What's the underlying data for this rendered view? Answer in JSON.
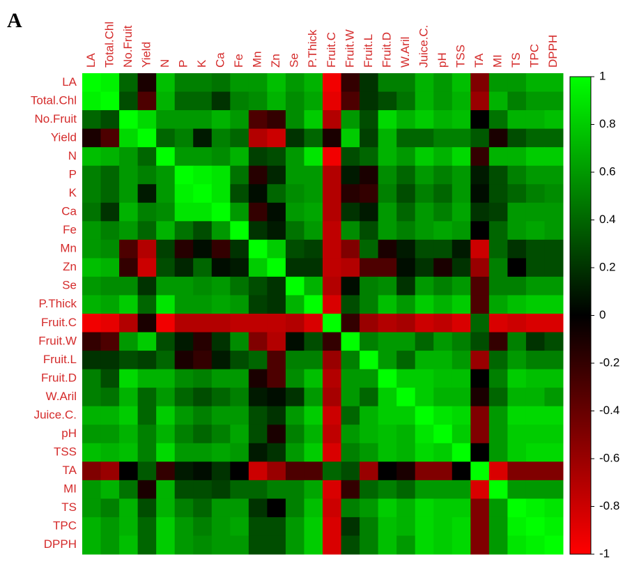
{
  "chart_data": {
    "type": "heatmap",
    "panel_label": "A",
    "categories": [
      "LA",
      "Total.Chl",
      "No.Fruit",
      "Yield",
      "N",
      "P",
      "K",
      "Ca",
      "Fe",
      "Mn",
      "Zn",
      "Se",
      "P.Thick",
      "Fruit.C",
      "Fruit.W",
      "Fruit.L",
      "Fruit.D",
      "W.Aril",
      "Juice.C.",
      "pH",
      "TSS",
      "TA",
      "MI",
      "TS",
      "TPC",
      "DPPH"
    ],
    "values": [
      [
        1,
        0.95,
        0.4,
        -0.1,
        0.75,
        0.5,
        0.5,
        0.45,
        0.6,
        0.6,
        0.75,
        0.6,
        0.7,
        -0.95,
        -0.2,
        0.2,
        0.5,
        0.5,
        0.7,
        0.6,
        0.75,
        -0.5,
        0.6,
        0.6,
        0.7,
        0.7
      ],
      [
        0.95,
        1,
        0.3,
        -0.3,
        0.7,
        0.4,
        0.4,
        0.2,
        0.5,
        0.55,
        0.7,
        0.55,
        0.65,
        -0.9,
        -0.3,
        0.2,
        0.3,
        0.45,
        0.7,
        0.6,
        0.7,
        -0.6,
        0.7,
        0.5,
        0.6,
        0.6
      ],
      [
        0.4,
        0.3,
        1,
        0.85,
        0.6,
        0.6,
        0.6,
        0.7,
        0.6,
        -0.3,
        -0.2,
        0.55,
        0.8,
        -0.7,
        0.6,
        0.3,
        0.85,
        0.7,
        0.8,
        0.7,
        0.75,
        0,
        0.45,
        0.7,
        0.7,
        0.75
      ],
      [
        -0.1,
        -0.3,
        0.85,
        1,
        0.4,
        0.5,
        0.1,
        0.5,
        0.4,
        -0.7,
        -0.8,
        0.2,
        0.4,
        -0.1,
        0.8,
        0.25,
        0.7,
        0.4,
        0.4,
        0.5,
        0.5,
        0.35,
        -0.1,
        0.3,
        0.4,
        0.4
      ],
      [
        0.75,
        0.7,
        0.6,
        0.4,
        1,
        0.6,
        0.6,
        0.55,
        0.7,
        0.25,
        0.3,
        0.6,
        0.9,
        -0.95,
        0.3,
        0.4,
        0.7,
        0.6,
        0.8,
        0.7,
        0.85,
        -0.2,
        0.7,
        0.7,
        0.8,
        0.8
      ],
      [
        0.5,
        0.4,
        0.6,
        0.5,
        0.6,
        1,
        0.95,
        0.9,
        0.45,
        -0.15,
        0.15,
        0.6,
        0.6,
        -0.7,
        0.1,
        -0.1,
        0.55,
        0.4,
        0.6,
        0.5,
        0.6,
        0.1,
        0.3,
        0.5,
        0.6,
        0.6
      ],
      [
        0.5,
        0.4,
        0.6,
        0.1,
        0.6,
        0.95,
        1,
        0.9,
        0.3,
        0.05,
        0.4,
        0.55,
        0.6,
        -0.7,
        -0.15,
        -0.2,
        0.5,
        0.3,
        0.5,
        0.4,
        0.6,
        0.05,
        0.3,
        0.4,
        0.5,
        0.55
      ],
      [
        0.45,
        0.2,
        0.7,
        0.5,
        0.55,
        0.9,
        0.9,
        1,
        0.6,
        -0.2,
        0.05,
        0.6,
        0.65,
        -0.7,
        0.2,
        0.1,
        0.6,
        0.4,
        0.6,
        0.5,
        0.65,
        0.2,
        0.25,
        0.6,
        0.6,
        0.6
      ],
      [
        0.6,
        0.5,
        0.6,
        0.4,
        0.7,
        0.45,
        0.3,
        0.6,
        1,
        0.2,
        0.1,
        0.45,
        0.6,
        -0.75,
        0.55,
        0.3,
        0.6,
        0.5,
        0.6,
        0.65,
        0.6,
        0,
        0.4,
        0.6,
        0.65,
        0.6
      ],
      [
        0.6,
        0.55,
        -0.3,
        -0.7,
        0.25,
        -0.15,
        0.05,
        -0.2,
        0.2,
        1,
        0.8,
        0.3,
        0.25,
        -0.75,
        -0.5,
        0.4,
        -0.1,
        0.1,
        0.3,
        0.3,
        0.1,
        -0.8,
        0.4,
        0.2,
        0.3,
        0.3
      ],
      [
        0.75,
        0.7,
        -0.2,
        -0.8,
        0.3,
        0.15,
        0.4,
        0.05,
        0.1,
        0.8,
        1,
        0.2,
        0.2,
        -0.75,
        -0.7,
        -0.3,
        -0.3,
        0.05,
        0.2,
        -0.1,
        0.2,
        -0.6,
        0.5,
        0,
        0.3,
        0.3
      ],
      [
        0.6,
        0.55,
        0.55,
        0.2,
        0.6,
        0.6,
        0.55,
        0.6,
        0.45,
        0.3,
        0.2,
        1,
        0.7,
        -0.7,
        0.05,
        0.5,
        0.55,
        0.2,
        0.6,
        0.5,
        0.6,
        -0.3,
        0.5,
        0.5,
        0.6,
        0.6
      ],
      [
        0.7,
        0.65,
        0.8,
        0.4,
        0.9,
        0.6,
        0.6,
        0.65,
        0.6,
        0.25,
        0.2,
        0.7,
        1,
        -0.85,
        0.3,
        0.5,
        0.75,
        0.6,
        0.8,
        0.7,
        0.8,
        -0.3,
        0.65,
        0.75,
        0.8,
        0.8
      ],
      [
        -0.95,
        -0.9,
        -0.7,
        -0.1,
        -0.95,
        -0.7,
        -0.7,
        -0.7,
        -0.75,
        -0.75,
        -0.75,
        -0.7,
        -0.85,
        1,
        -0.2,
        -0.6,
        -0.7,
        -0.65,
        -0.8,
        -0.75,
        -0.85,
        0.4,
        -0.85,
        -0.8,
        -0.85,
        -0.85
      ],
      [
        -0.2,
        -0.3,
        0.6,
        0.8,
        0.3,
        0.1,
        -0.15,
        0.2,
        0.55,
        -0.5,
        -0.7,
        0.05,
        0.3,
        -0.2,
        1,
        0.5,
        0.6,
        0.6,
        0.4,
        0.6,
        0.5,
        0.3,
        -0.2,
        0.5,
        0.2,
        0.3
      ],
      [
        0.2,
        0.2,
        0.3,
        0.25,
        0.4,
        -0.1,
        -0.2,
        0.1,
        0.3,
        0.4,
        -0.3,
        0.5,
        0.5,
        -0.6,
        0.5,
        1,
        0.6,
        0.4,
        0.7,
        0.7,
        0.6,
        -0.6,
        0.4,
        0.6,
        0.5,
        0.5
      ],
      [
        0.5,
        0.3,
        0.85,
        0.7,
        0.7,
        0.55,
        0.5,
        0.6,
        0.6,
        -0.1,
        -0.3,
        0.55,
        0.75,
        -0.7,
        0.6,
        0.6,
        1,
        0.8,
        0.8,
        0.75,
        0.75,
        0,
        0.5,
        0.8,
        0.75,
        0.75
      ],
      [
        0.5,
        0.45,
        0.7,
        0.4,
        0.6,
        0.4,
        0.3,
        0.4,
        0.5,
        0.1,
        0.05,
        0.2,
        0.6,
        -0.65,
        0.6,
        0.4,
        0.8,
        1,
        0.8,
        0.7,
        0.7,
        -0.1,
        0.4,
        0.7,
        0.7,
        0.6
      ],
      [
        0.7,
        0.7,
        0.8,
        0.4,
        0.8,
        0.6,
        0.5,
        0.6,
        0.6,
        0.3,
        0.2,
        0.6,
        0.8,
        -0.8,
        0.4,
        0.7,
        0.8,
        0.8,
        1,
        0.9,
        0.85,
        -0.5,
        0.6,
        0.85,
        0.85,
        0.85
      ],
      [
        0.6,
        0.6,
        0.7,
        0.5,
        0.7,
        0.5,
        0.4,
        0.5,
        0.65,
        0.3,
        -0.1,
        0.5,
        0.7,
        -0.75,
        0.6,
        0.7,
        0.75,
        0.7,
        0.9,
        1,
        0.8,
        -0.5,
        0.6,
        0.8,
        0.8,
        0.8
      ],
      [
        0.75,
        0.7,
        0.75,
        0.5,
        0.85,
        0.6,
        0.6,
        0.65,
        0.6,
        0.1,
        0.2,
        0.6,
        0.8,
        -0.85,
        0.5,
        0.6,
        0.75,
        0.7,
        0.85,
        0.8,
        1,
        0,
        0.6,
        0.8,
        0.85,
        0.85
      ],
      [
        -0.5,
        -0.6,
        0,
        0.35,
        -0.2,
        0.1,
        0.05,
        0.2,
        0,
        -0.8,
        -0.6,
        -0.3,
        -0.3,
        0.4,
        0.3,
        -0.6,
        0,
        -0.1,
        -0.5,
        -0.5,
        0,
        1,
        -0.85,
        -0.5,
        -0.5,
        -0.5
      ],
      [
        0.6,
        0.7,
        0.45,
        -0.1,
        0.7,
        0.3,
        0.3,
        0.25,
        0.4,
        0.4,
        0.5,
        0.5,
        0.65,
        -0.85,
        -0.2,
        0.4,
        0.5,
        0.4,
        0.6,
        0.6,
        0.6,
        -0.85,
        1,
        0.6,
        0.6,
        0.6
      ],
      [
        0.6,
        0.5,
        0.7,
        0.3,
        0.7,
        0.5,
        0.4,
        0.6,
        0.6,
        0.2,
        0,
        0.5,
        0.75,
        -0.8,
        0.5,
        0.6,
        0.8,
        0.7,
        0.85,
        0.8,
        0.8,
        -0.5,
        0.6,
        1,
        0.95,
        0.9
      ],
      [
        0.7,
        0.6,
        0.7,
        0.4,
        0.8,
        0.6,
        0.5,
        0.6,
        0.65,
        0.3,
        0.3,
        0.6,
        0.8,
        -0.85,
        0.2,
        0.5,
        0.75,
        0.7,
        0.85,
        0.8,
        0.85,
        -0.5,
        0.6,
        0.95,
        1,
        0.95
      ],
      [
        0.7,
        0.6,
        0.75,
        0.4,
        0.8,
        0.6,
        0.55,
        0.6,
        0.6,
        0.3,
        0.3,
        0.6,
        0.8,
        -0.85,
        0.3,
        0.5,
        0.75,
        0.6,
        0.85,
        0.8,
        0.85,
        -0.5,
        0.6,
        0.9,
        0.95,
        1
      ]
    ],
    "zlim": [
      -1,
      1
    ],
    "zticks": [
      1,
      0.8,
      0.6,
      0.4,
      0.2,
      0,
      -0.2,
      -0.4,
      -0.6,
      -0.8,
      -1
    ],
    "colormap": [
      "#ff0000",
      "#000000",
      "#00ff00"
    ],
    "label_color": "#d42a2a"
  }
}
